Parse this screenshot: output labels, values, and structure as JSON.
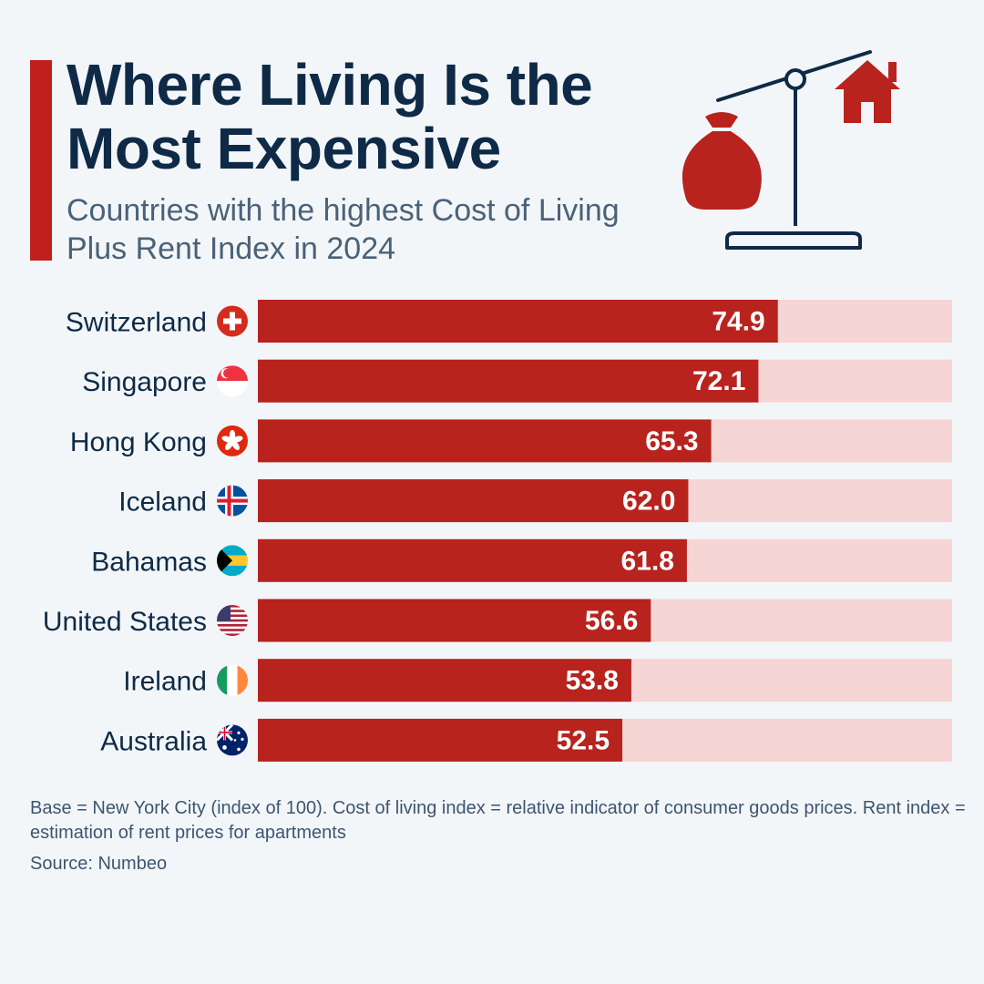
{
  "header": {
    "title": "Where Living Is the Most Expensive",
    "subtitle": "Countries with the highest Cost of Living Plus Rent Index in 2024"
  },
  "chart_data": {
    "type": "bar",
    "orientation": "horizontal",
    "categories": [
      "Switzerland",
      "Singapore",
      "Hong Kong",
      "Iceland",
      "Bahamas",
      "United States",
      "Ireland",
      "Australia"
    ],
    "values": [
      74.9,
      72.1,
      65.3,
      62.0,
      61.8,
      56.6,
      53.8,
      52.5
    ],
    "value_labels": [
      "74.9",
      "72.1",
      "65.3",
      "62.0",
      "61.8",
      "56.6",
      "53.8",
      "52.5"
    ],
    "flag_icons": [
      "flag-switzerland-icon",
      "flag-singapore-icon",
      "flag-hong-kong-icon",
      "flag-iceland-icon",
      "flag-bahamas-icon",
      "flag-united-states-icon",
      "flag-ireland-icon",
      "flag-australia-icon"
    ],
    "xlim": [
      0,
      100
    ],
    "grid": false,
    "colors": {
      "bar": "#b8231e",
      "track": "#f6d5d5",
      "label": "#0e2a47"
    }
  },
  "footer": {
    "note": "Base = New York City (index of 100). Cost of living index = relative indicator of consumer goods prices. Rent index = estimation of rent prices for apartments",
    "source": "Source: Numbeo"
  },
  "icons": {
    "illustration": "scale-money-bag-house-icon"
  },
  "colors": {
    "accent": "#c0201d",
    "title": "#0e2a47",
    "subtitle": "#4a6278",
    "background": "#f3f6f9"
  }
}
